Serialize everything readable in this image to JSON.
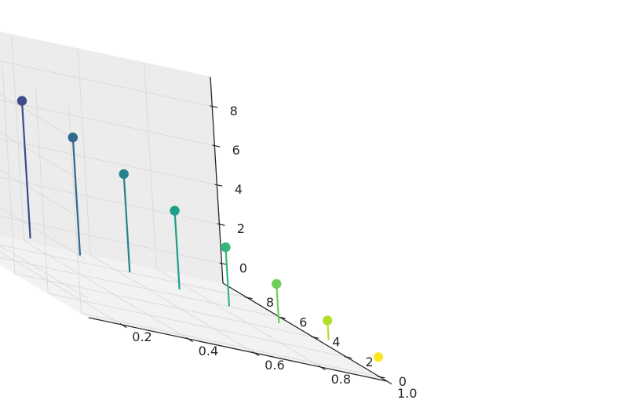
{
  "chart_data": {
    "type": "3d-stem",
    "title": "",
    "xlabel": "",
    "ylabel": "",
    "zlabel": "",
    "xlim": [
      0.1,
      1.0
    ],
    "ylim": [
      -0.45,
      9.45
    ],
    "zlim": [
      -1.0,
      9.5
    ],
    "grid": true,
    "colormap": "viridis",
    "x_ticks": [
      "0.2",
      "0.4",
      "0.6",
      "0.8",
      "1.0"
    ],
    "y_ticks": [
      "0",
      "2",
      "4",
      "6",
      "8"
    ],
    "z_ticks": [
      "0",
      "2",
      "4",
      "6",
      "8"
    ],
    "points": [
      {
        "x": 0.1,
        "y": 9,
        "z": 9,
        "color": "#440154"
      },
      {
        "x": 0.2,
        "y": 8,
        "z": 8,
        "color": "#482878"
      },
      {
        "x": 0.3,
        "y": 7,
        "z": 7,
        "color": "#3e4a89"
      },
      {
        "x": 0.4,
        "y": 6,
        "z": 6,
        "color": "#31688e"
      },
      {
        "x": 0.5,
        "y": 5,
        "z": 5,
        "color": "#26828e"
      },
      {
        "x": 0.6,
        "y": 4,
        "z": 4,
        "color": "#1f9e89"
      },
      {
        "x": 0.7,
        "y": 3,
        "z": 3,
        "color": "#35b779"
      },
      {
        "x": 0.8,
        "y": 2,
        "z": 2,
        "color": "#6ece58"
      },
      {
        "x": 0.9,
        "y": 1,
        "z": 1,
        "color": "#b5de2b"
      },
      {
        "x": 1.0,
        "y": 0,
        "z": 0,
        "color": "#fde725"
      }
    ]
  }
}
